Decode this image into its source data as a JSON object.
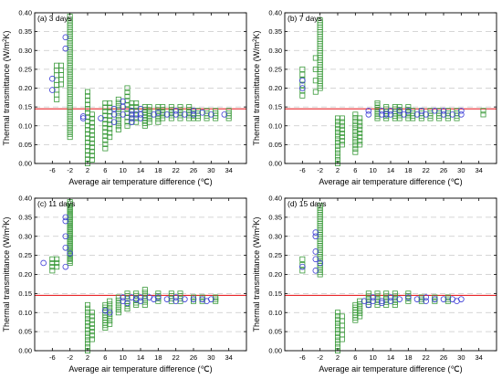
{
  "figure": {
    "ylabel_prefix": "Thermal transmittance (W/m",
    "ylabel_sup": "2",
    "ylabel_suffix": "K)",
    "xlabel": "Average air temperature difference (℃)"
  },
  "colors": {
    "circle": "#3b3bd6",
    "square": "#3a9a3a",
    "refline": "#e8262b",
    "grid": "#c8c8c8"
  },
  "chart_data": [
    {
      "type": "scatter",
      "title": "(a) 3 days",
      "xlabel": "Average air temperature difference (℃)",
      "ylabel": "Thermal transmittance (W/m2K)",
      "xlim": [
        -10,
        38
      ],
      "ylim": [
        0,
        0.4
      ],
      "xticks": [
        -6,
        -2,
        2,
        6,
        10,
        14,
        18,
        22,
        26,
        30,
        34
      ],
      "yticks": [
        0.0,
        0.05,
        0.1,
        0.15,
        0.2,
        0.25,
        0.3,
        0.35,
        0.4
      ],
      "grid": "horizontal dashed",
      "reference_line": 0.145,
      "series": [
        {
          "marker": "circle",
          "points": [
            [
              -6,
              0.225
            ],
            [
              -6,
              0.195
            ],
            [
              -3,
              0.335
            ],
            [
              -3,
              0.305
            ],
            [
              1,
              0.12
            ],
            [
              1,
              0.125
            ],
            [
              5,
              0.12
            ],
            [
              8,
              0.145
            ],
            [
              8,
              0.13
            ],
            [
              8,
              0.11
            ],
            [
              10,
              0.165
            ],
            [
              10,
              0.15
            ],
            [
              10,
              0.13
            ],
            [
              12,
              0.14
            ],
            [
              12,
              0.13
            ],
            [
              12,
              0.12
            ],
            [
              12,
              0.11
            ],
            [
              13,
              0.13
            ],
            [
              14,
              0.145
            ],
            [
              14,
              0.13
            ],
            [
              14,
              0.12
            ],
            [
              17,
              0.13
            ],
            [
              18,
              0.135
            ],
            [
              20,
              0.13
            ],
            [
              22,
              0.14
            ],
            [
              22,
              0.13
            ],
            [
              24,
              0.13
            ],
            [
              26,
              0.14
            ],
            [
              26,
              0.13
            ],
            [
              28,
              0.135
            ],
            [
              30,
              0.13
            ],
            [
              33,
              0.13
            ]
          ]
        },
        {
          "marker": "square",
          "values_x": [
            -5,
            -4,
            -2,
            2,
            3,
            6,
            7,
            9,
            11,
            12,
            13,
            15,
            16,
            18,
            19,
            21,
            23,
            25,
            26,
            27,
            29,
            31,
            34
          ],
          "note": "vertical stacks"
        }
      ]
    },
    {
      "type": "scatter",
      "title": "(b) 7 days",
      "xlim": [
        -10,
        38
      ],
      "ylim": [
        0,
        0.4
      ],
      "xticks": [
        -6,
        -2,
        2,
        6,
        10,
        14,
        18,
        22,
        26,
        30,
        34
      ],
      "yticks": [
        0.0,
        0.05,
        0.1,
        0.15,
        0.2,
        0.25,
        0.3,
        0.35,
        0.4
      ],
      "reference_line": 0.145
    },
    {
      "type": "scatter",
      "title": "(c) 11 days",
      "xlim": [
        -10,
        38
      ],
      "ylim": [
        0,
        0.4
      ],
      "xticks": [
        -6,
        -2,
        2,
        6,
        10,
        14,
        18,
        22,
        26,
        30,
        34
      ],
      "yticks": [
        0.0,
        0.05,
        0.1,
        0.15,
        0.2,
        0.25,
        0.3,
        0.35,
        0.4
      ],
      "reference_line": 0.145
    },
    {
      "type": "scatter",
      "title": "(d) 15 days",
      "xlim": [
        -10,
        38
      ],
      "ylim": [
        0,
        0.4
      ],
      "xticks": [
        -6,
        -2,
        2,
        6,
        10,
        14,
        18,
        22,
        26,
        30,
        34
      ],
      "yticks": [
        0.0,
        0.05,
        0.1,
        0.15,
        0.2,
        0.25,
        0.3,
        0.35,
        0.4
      ],
      "reference_line": 0.145
    }
  ],
  "panel_points": [
    {
      "circles": [
        [
          -6,
          0.225
        ],
        [
          -6,
          0.195
        ],
        [
          -3,
          0.335
        ],
        [
          -3,
          0.305
        ],
        [
          1,
          0.12
        ],
        [
          1,
          0.125
        ],
        [
          5,
          0.12
        ],
        [
          8,
          0.145
        ],
        [
          8,
          0.13
        ],
        [
          8,
          0.11
        ],
        [
          10,
          0.165
        ],
        [
          10,
          0.15
        ],
        [
          10,
          0.13
        ],
        [
          12,
          0.14
        ],
        [
          12,
          0.13
        ],
        [
          12,
          0.12
        ],
        [
          12,
          0.11
        ],
        [
          13,
          0.13
        ],
        [
          14,
          0.145
        ],
        [
          14,
          0.13
        ],
        [
          14,
          0.12
        ],
        [
          17,
          0.13
        ],
        [
          18,
          0.135
        ],
        [
          20,
          0.13
        ],
        [
          22,
          0.14
        ],
        [
          22,
          0.13
        ],
        [
          24,
          0.13
        ],
        [
          26,
          0.14
        ],
        [
          26,
          0.13
        ],
        [
          28,
          0.135
        ],
        [
          30,
          0.13
        ],
        [
          33,
          0.13
        ]
      ],
      "square_stacks": [
        [
          -5,
          0.17,
          0.26,
          8
        ],
        [
          -4,
          0.21,
          0.26,
          5
        ],
        [
          -2,
          0.07,
          0.39,
          40
        ],
        [
          2,
          0.0,
          0.19,
          18
        ],
        [
          3,
          0.01,
          0.13,
          12
        ],
        [
          6,
          0.04,
          0.16,
          12
        ],
        [
          7,
          0.07,
          0.16,
          9
        ],
        [
          9,
          0.09,
          0.17,
          10
        ],
        [
          11,
          0.1,
          0.2,
          10
        ],
        [
          12,
          0.11,
          0.16,
          6
        ],
        [
          13,
          0.11,
          0.16,
          6
        ],
        [
          15,
          0.1,
          0.15,
          8
        ],
        [
          16,
          0.11,
          0.15,
          6
        ],
        [
          18,
          0.11,
          0.15,
          6
        ],
        [
          19,
          0.12,
          0.15,
          5
        ],
        [
          21,
          0.12,
          0.15,
          5
        ],
        [
          23,
          0.12,
          0.15,
          5
        ],
        [
          25,
          0.12,
          0.15,
          5
        ],
        [
          26,
          0.12,
          0.14,
          4
        ],
        [
          27,
          0.12,
          0.14,
          4
        ],
        [
          29,
          0.12,
          0.14,
          4
        ],
        [
          31,
          0.12,
          0.14,
          4
        ],
        [
          34,
          0.12,
          0.14,
          4
        ]
      ]
    },
    {
      "circles": [
        [
          -6,
          0.2
        ],
        [
          -6,
          0.22
        ],
        [
          9,
          0.14
        ],
        [
          9,
          0.13
        ],
        [
          12,
          0.14
        ],
        [
          12,
          0.13
        ],
        [
          13,
          0.13
        ],
        [
          14,
          0.14
        ],
        [
          14,
          0.13
        ],
        [
          16,
          0.14
        ],
        [
          17,
          0.13
        ],
        [
          18,
          0.14
        ],
        [
          20,
          0.13
        ],
        [
          21,
          0.14
        ],
        [
          22,
          0.13
        ],
        [
          24,
          0.14
        ],
        [
          26,
          0.13
        ],
        [
          26,
          0.14
        ],
        [
          28,
          0.13
        ],
        [
          30,
          0.13
        ],
        [
          30,
          0.14
        ]
      ],
      "square_stacks": [
        [
          -6,
          0.18,
          0.25,
          6
        ],
        [
          -3,
          0.19,
          0.28,
          4
        ],
        [
          -2,
          0.2,
          0.38,
          30
        ],
        [
          2,
          0.0,
          0.12,
          14
        ],
        [
          3,
          0.05,
          0.12,
          8
        ],
        [
          6,
          0.03,
          0.13,
          12
        ],
        [
          7,
          0.05,
          0.12,
          8
        ],
        [
          11,
          0.12,
          0.16,
          8
        ],
        [
          13,
          0.12,
          0.15,
          6
        ],
        [
          15,
          0.12,
          0.15,
          6
        ],
        [
          16,
          0.12,
          0.15,
          5
        ],
        [
          18,
          0.12,
          0.15,
          5
        ],
        [
          19,
          0.12,
          0.14,
          4
        ],
        [
          21,
          0.12,
          0.14,
          4
        ],
        [
          23,
          0.12,
          0.14,
          4
        ],
        [
          25,
          0.12,
          0.14,
          4
        ],
        [
          27,
          0.12,
          0.14,
          4
        ],
        [
          29,
          0.12,
          0.14,
          4
        ],
        [
          35,
          0.13,
          0.14,
          2
        ]
      ]
    },
    {
      "circles": [
        [
          -8,
          0.23
        ],
        [
          -3,
          0.22
        ],
        [
          -3,
          0.27
        ],
        [
          -3,
          0.3
        ],
        [
          -3,
          0.34
        ],
        [
          -3,
          0.35
        ],
        [
          -2,
          0.255
        ],
        [
          6,
          0.105
        ],
        [
          7,
          0.1
        ],
        [
          10,
          0.14
        ],
        [
          10,
          0.13
        ],
        [
          11,
          0.125
        ],
        [
          12,
          0.14
        ],
        [
          13,
          0.135
        ],
        [
          14,
          0.14
        ],
        [
          14,
          0.13
        ],
        [
          16,
          0.14
        ],
        [
          17,
          0.135
        ],
        [
          18,
          0.14
        ],
        [
          20,
          0.135
        ],
        [
          22,
          0.14
        ],
        [
          22,
          0.13
        ],
        [
          24,
          0.135
        ],
        [
          26,
          0.135
        ],
        [
          28,
          0.135
        ],
        [
          29,
          0.13
        ],
        [
          30,
          0.135
        ]
      ],
      "square_stacks": [
        [
          -6,
          0.21,
          0.24,
          4
        ],
        [
          -5,
          0.22,
          0.24,
          3
        ],
        [
          -2,
          0.23,
          0.39,
          32
        ],
        [
          2,
          0.0,
          0.12,
          14
        ],
        [
          3,
          0.03,
          0.1,
          8
        ],
        [
          6,
          0.06,
          0.12,
          10
        ],
        [
          7,
          0.07,
          0.13,
          8
        ],
        [
          9,
          0.1,
          0.14,
          6
        ],
        [
          11,
          0.11,
          0.15,
          7
        ],
        [
          13,
          0.12,
          0.15,
          6
        ],
        [
          15,
          0.12,
          0.16,
          6
        ],
        [
          18,
          0.13,
          0.15,
          4
        ],
        [
          21,
          0.13,
          0.15,
          4
        ],
        [
          23,
          0.13,
          0.15,
          4
        ],
        [
          26,
          0.13,
          0.14,
          3
        ],
        [
          28,
          0.13,
          0.14,
          3
        ],
        [
          31,
          0.13,
          0.14,
          3
        ]
      ]
    },
    {
      "circles": [
        [
          -6,
          0.22
        ],
        [
          -3,
          0.21
        ],
        [
          -3,
          0.24
        ],
        [
          -3,
          0.26
        ],
        [
          -3,
          0.3
        ],
        [
          -3,
          0.31
        ],
        [
          -2,
          0.23
        ],
        [
          8,
          0.13
        ],
        [
          9,
          0.12
        ],
        [
          10,
          0.14
        ],
        [
          10,
          0.13
        ],
        [
          12,
          0.13
        ],
        [
          12,
          0.125
        ],
        [
          14,
          0.14
        ],
        [
          14,
          0.13
        ],
        [
          16,
          0.135
        ],
        [
          18,
          0.14
        ],
        [
          20,
          0.135
        ],
        [
          22,
          0.14
        ],
        [
          22,
          0.13
        ],
        [
          24,
          0.135
        ],
        [
          26,
          0.135
        ],
        [
          28,
          0.135
        ],
        [
          29,
          0.13
        ],
        [
          30,
          0.135
        ]
      ],
      "square_stacks": [
        [
          -6,
          0.21,
          0.24,
          3
        ],
        [
          -2,
          0.2,
          0.38,
          32
        ],
        [
          2,
          0.0,
          0.1,
          12
        ],
        [
          3,
          0.03,
          0.09,
          6
        ],
        [
          6,
          0.08,
          0.12,
          7
        ],
        [
          7,
          0.09,
          0.13,
          6
        ],
        [
          9,
          0.12,
          0.15,
          5
        ],
        [
          11,
          0.12,
          0.15,
          5
        ],
        [
          13,
          0.12,
          0.15,
          5
        ],
        [
          15,
          0.12,
          0.15,
          5
        ],
        [
          18,
          0.13,
          0.15,
          4
        ],
        [
          21,
          0.13,
          0.14,
          3
        ],
        [
          24,
          0.13,
          0.14,
          3
        ],
        [
          27,
          0.13,
          0.14,
          3
        ]
      ]
    }
  ]
}
